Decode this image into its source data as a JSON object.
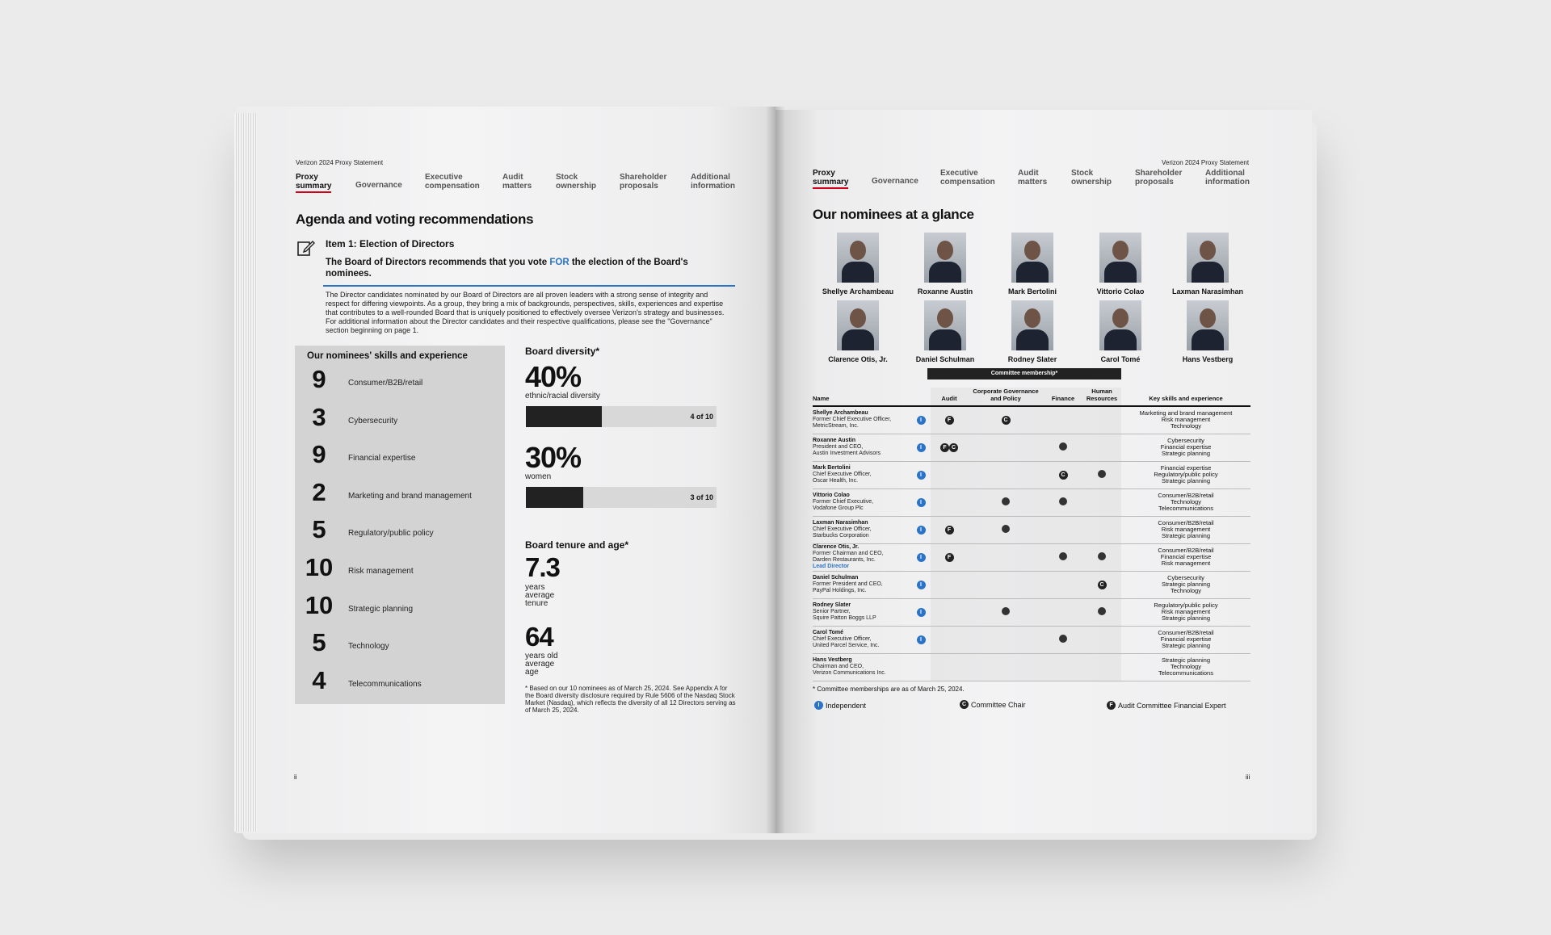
{
  "left": {
    "doc_title": "Verizon 2024 Proxy Statement",
    "nav": [
      "Proxy\nsummary",
      "Governance",
      "Executive\ncompensation",
      "Audit\nmatters",
      "Stock\nownership",
      "Shareholder\nproposals",
      "Additional\ninformation"
    ],
    "heading": "Agenda and voting recommendations",
    "item_title": "Item 1: Election of Directors",
    "recommend_pre": "The Board of Directors recommends that you vote ",
    "recommend_for": "FOR",
    "recommend_post": " the election of the Board's nominees.",
    "body": "The Director candidates nominated by our Board of Directors are all proven leaders with a strong sense of integrity and respect for differing viewpoints. As a group, they bring a mix of backgrounds, perspectives, skills, experiences and expertise that contributes to a well-rounded Board that is uniquely positioned to effectively oversee Verizon's strategy and businesses. For additional information about the Director candidates and their respective qualifications, please see the \"Governance\" section beginning on page 1.",
    "skills_title": "Our nominees' skills and experience",
    "skills": [
      {
        "count": "9",
        "label": "Consumer/B2B/retail"
      },
      {
        "count": "3",
        "label": "Cybersecurity"
      },
      {
        "count": "9",
        "label": "Financial expertise"
      },
      {
        "count": "2",
        "label": "Marketing and brand management"
      },
      {
        "count": "5",
        "label": "Regulatory/public policy"
      },
      {
        "count": "10",
        "label": "Risk management"
      },
      {
        "count": "10",
        "label": "Strategic planning"
      },
      {
        "count": "5",
        "label": "Technology"
      },
      {
        "count": "4",
        "label": "Telecommunications"
      }
    ],
    "diversity_title": "Board diversity*",
    "ethnic_pct": "40%",
    "ethnic_caption": "ethnic/racial diversity",
    "ethnic_bar": "4 of 10",
    "ethnic_fraction": 0.4,
    "women_pct": "30%",
    "women_caption": "women",
    "women_bar": "3 of 10",
    "women_fraction": 0.3,
    "tenure_title": "Board tenure and age*",
    "tenure_value": "7.3",
    "tenure_caption": "years\naverage\ntenure",
    "age_value": "64",
    "age_caption": "years old\naverage\nage",
    "footnote": "*   Based on our 10 nominees as of March 25, 2024. See Appendix A for the Board diversity disclosure required by Rule 5606 of the Nasdaq Stock Market (Nasdaq), which reflects the diversity of all 12 Directors serving as of March 25, 2024.",
    "page_num": "ii"
  },
  "right": {
    "doc_title": "Verizon 2024 Proxy Statement",
    "nav": [
      "Proxy\nsummary",
      "Governance",
      "Executive\ncompensation",
      "Audit\nmatters",
      "Stock\nownership",
      "Shareholder\nproposals",
      "Additional\ninformation"
    ],
    "heading": "Our nominees at a glance",
    "nominees_row1": [
      "Shellye Archambeau",
      "Roxanne Austin",
      "Mark Bertolini",
      "Vittorio Colao",
      "Laxman Narasimhan"
    ],
    "nominees_row2": [
      "Clarence Otis, Jr.",
      "Daniel Schulman",
      "Rodney Slater",
      "Carol Tomé",
      "Hans Vestberg"
    ],
    "committee_band": "Committee membership*",
    "headers": {
      "name": "Name",
      "audit": "Audit",
      "cgp": "Corporate Governance and Policy",
      "finance": "Finance",
      "hr": "Human Resources",
      "skills": "Key skills and experience"
    },
    "rows": [
      {
        "name": "Shellye Archambeau",
        "role": "Former Chief Executive Officer,",
        "org": "MetricStream, Inc.",
        "lead": "",
        "audit": "F",
        "cgp": "C",
        "finance": "",
        "hr": "",
        "skills": "Marketing and brand management\nRisk management\nTechnology"
      },
      {
        "name": "Roxanne Austin",
        "role": "President and CEO,",
        "org": "Austin Investment Advisors",
        "lead": "",
        "audit": "FC",
        "cgp": "",
        "finance": "dot",
        "hr": "",
        "skills": "Cybersecurity\nFinancial expertise\nStrategic planning"
      },
      {
        "name": "Mark Bertolini",
        "role": "Chief Executive Officer,",
        "org": "Oscar Health, Inc.",
        "lead": "",
        "audit": "",
        "cgp": "",
        "finance": "C",
        "hr": "dot",
        "skills": "Financial expertise\nRegulatory/public policy\nStrategic planning"
      },
      {
        "name": "Vittorio Colao",
        "role": "Former Chief Executive,",
        "org": "Vodafone Group Plc",
        "lead": "",
        "audit": "",
        "cgp": "dot",
        "finance": "dot",
        "hr": "",
        "skills": "Consumer/B2B/retail\nTechnology\nTelecommunications"
      },
      {
        "name": "Laxman Narasimhan",
        "role": "Chief Executive Officer,",
        "org": "Starbucks Corporation",
        "lead": "",
        "audit": "F",
        "cgp": "dot",
        "finance": "",
        "hr": "",
        "skills": "Consumer/B2B/retail\nRisk management\nStrategic planning"
      },
      {
        "name": "Clarence Otis, Jr.",
        "role": "Former Chairman and CEO,",
        "org": "Darden Restaurants, Inc.",
        "lead": "Lead Director",
        "audit": "F",
        "cgp": "",
        "finance": "dot",
        "hr": "dot",
        "skills": "Consumer/B2B/retail\nFinancial expertise\nRisk management"
      },
      {
        "name": "Daniel Schulman",
        "role": "Former President and CEO,",
        "org": "PayPal Holdings, Inc.",
        "lead": "",
        "audit": "",
        "cgp": "",
        "finance": "",
        "hr": "C",
        "skills": "Cybersecurity\nStrategic planning\nTechnology"
      },
      {
        "name": "Rodney Slater",
        "role": "Senior Partner,",
        "org": "Squire Patton Boggs LLP",
        "lead": "",
        "audit": "",
        "cgp": "dot",
        "finance": "",
        "hr": "dot",
        "skills": "Regulatory/public policy\nRisk management\nStrategic planning"
      },
      {
        "name": "Carol Tomé",
        "role": "Chief Executive Officer,",
        "org": "United Parcel Service, Inc.",
        "lead": "",
        "audit": "",
        "cgp": "",
        "finance": "dot",
        "hr": "",
        "skills": "Consumer/B2B/retail\nFinancial expertise\nStrategic planning"
      },
      {
        "name": "Hans Vestberg",
        "role": "Chairman and CEO,",
        "org": "Verizon Communications Inc.",
        "lead": "",
        "audit": "",
        "cgp": "",
        "finance": "",
        "hr": "",
        "skills": "Strategic planning\nTechnology\nTelecommunications"
      }
    ],
    "footnote": "*  Committee memberships are as of March 25, 2024.",
    "legend_independent": "Independent",
    "legend_chair": "Committee Chair",
    "legend_fin": "Audit Committee Financial Expert",
    "page_num": "iii"
  },
  "colors": {
    "accent_red": "#d0021b",
    "link_blue": "#2a73c7"
  }
}
